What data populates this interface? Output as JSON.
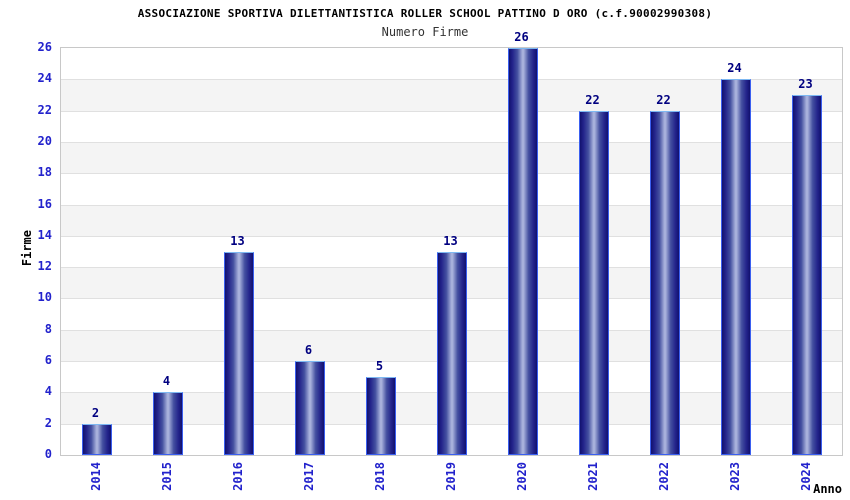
{
  "chart_data": {
    "type": "bar",
    "title": "ASSOCIAZIONE SPORTIVA DILETTANTISTICA ROLLER SCHOOL PATTINO D ORO (c.f.90002990308)",
    "subtitle": "Numero Firme",
    "xlabel": "Anno",
    "ylabel": "Firme",
    "categories": [
      "2014",
      "2015",
      "2016",
      "2017",
      "2018",
      "2019",
      "2020",
      "2021",
      "2022",
      "2023",
      "2024"
    ],
    "values": [
      2,
      4,
      13,
      6,
      5,
      13,
      26,
      22,
      22,
      24,
      23
    ],
    "ylim": [
      0,
      26
    ],
    "ytick_step": 2,
    "legend": "none",
    "grid": "horizontal-bands-alternating",
    "bar_value_labels": true,
    "colors": {
      "tick_label": "#2222cc",
      "value_label": "#000080",
      "band_white": "#ffffff",
      "band_alt": "#f4f4f4",
      "gridline": "#e0e0e0",
      "plot_border": "#c8c8c8",
      "bar_edge": "#12126e",
      "bar_dark": "#22228a",
      "bar_mid": "#4450a0",
      "bar_center": "#a9b2dc",
      "bar_border": "#3a5ff0",
      "bar_border_top": "#7db8f2",
      "title_color": "#000000",
      "subtitle_color": "#333333"
    }
  }
}
